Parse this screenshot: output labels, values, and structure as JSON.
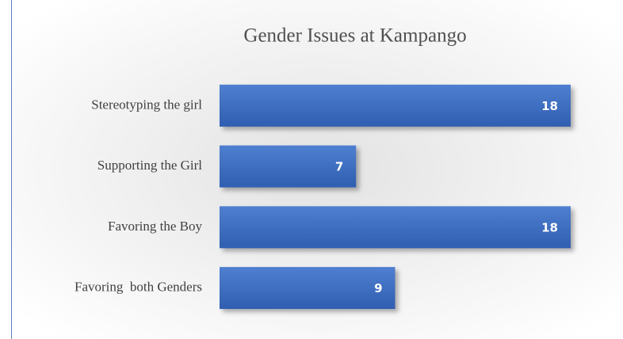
{
  "chart_data": {
    "type": "bar",
    "orientation": "horizontal",
    "title": "Gender Issues at Kampango",
    "categories": [
      "Stereotyping the girl",
      "Supporting the Girl",
      "Favoring the Boy",
      "Favoring  both Genders"
    ],
    "values": [
      18,
      7,
      18,
      9
    ],
    "color": "#4472c4"
  }
}
